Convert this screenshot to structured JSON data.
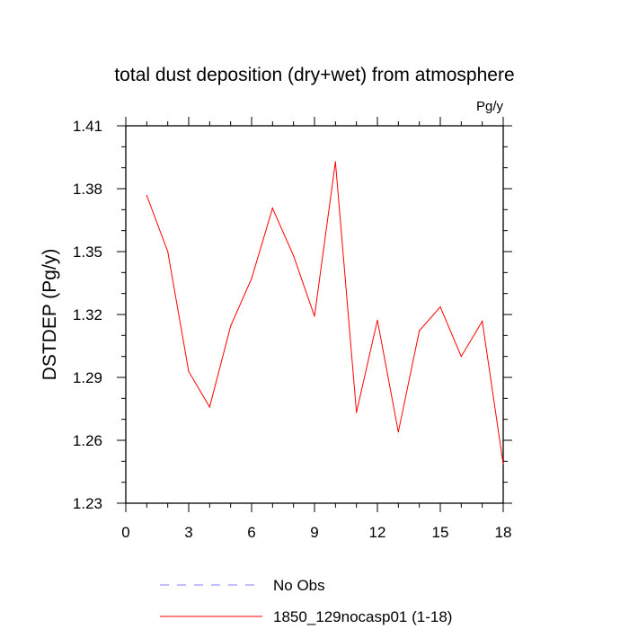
{
  "chart_data": {
    "type": "line",
    "title": "total dust deposition (dry+wet) from atmosphere",
    "units": "Pg/y",
    "xlabel": "",
    "ylabel": "DSTDEP  (Pg/y)",
    "xlim": [
      0,
      18
    ],
    "ylim": [
      1.23,
      1.41
    ],
    "x_ticks": [
      "0",
      "3",
      "6",
      "9",
      "12",
      "15",
      "18"
    ],
    "y_ticks": [
      "1.23",
      "1.26",
      "1.29",
      "1.32",
      "1.35",
      "1.38",
      "1.41"
    ],
    "grid": false,
    "legend_position": "bottom",
    "series": [
      {
        "name": "1850_129nocasp01 (1-18)",
        "color": "#ff0000",
        "x": [
          1,
          2,
          3,
          4,
          5,
          6,
          7,
          8,
          9,
          10,
          11,
          12,
          13,
          14,
          15,
          16,
          17,
          18
        ],
        "y": [
          1.3768,
          1.35,
          1.2928,
          1.2759,
          1.3145,
          1.3372,
          1.3707,
          1.348,
          1.3192,
          1.3928,
          1.2733,
          1.3173,
          1.264,
          1.3123,
          1.3236,
          1.3,
          1.3168,
          1.2487
        ]
      }
    ],
    "legend": [
      {
        "label": "No Obs",
        "color": "#8080ff",
        "style": "dashed"
      },
      {
        "label": "1850_129nocasp01 (1-18)",
        "color": "#ff0000",
        "style": "solid"
      }
    ]
  }
}
